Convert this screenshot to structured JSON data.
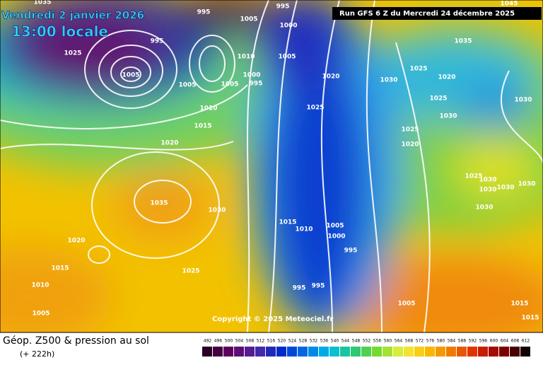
{
  "header": {
    "date": "Vendredi 2 janvier 2026",
    "time": "13:00 locale",
    "run": "Run GFS 6 Z du Mercredi 24 décembre 2025"
  },
  "map": {
    "isobar_labels": [
      "1035",
      "995",
      "995",
      "1005",
      "1000",
      "1025",
      "995",
      "1005",
      "1005",
      "1005",
      "1010",
      "1015",
      "1020",
      "1000",
      "995",
      "1010",
      "1005",
      "1020",
      "1025",
      "1030",
      "1025",
      "1020",
      "1025",
      "1030",
      "1035",
      "1030",
      "1025",
      "1020",
      "1025",
      "1030",
      "1030",
      "1030",
      "1030",
      "1030",
      "1035",
      "1030",
      "1020",
      "1015",
      "1025",
      "1010",
      "1005",
      "1015",
      "1010",
      "1005",
      "1000",
      "995",
      "995",
      "995",
      "1005",
      "1015",
      "1015",
      "1045"
    ],
    "copyright": "Copyright © 2025 Meteociel.fr"
  },
  "footer": {
    "title": "Géop. Z500 & pression au sol",
    "lead": "(+ 222h)"
  },
  "legend": {
    "ticks": [
      492,
      496,
      500,
      504,
      508,
      512,
      516,
      520,
      524,
      528,
      532,
      536,
      540,
      544,
      548,
      552,
      556,
      560,
      564,
      568,
      572,
      576,
      580,
      584,
      588,
      592,
      596,
      600,
      604,
      608,
      612
    ]
  }
}
